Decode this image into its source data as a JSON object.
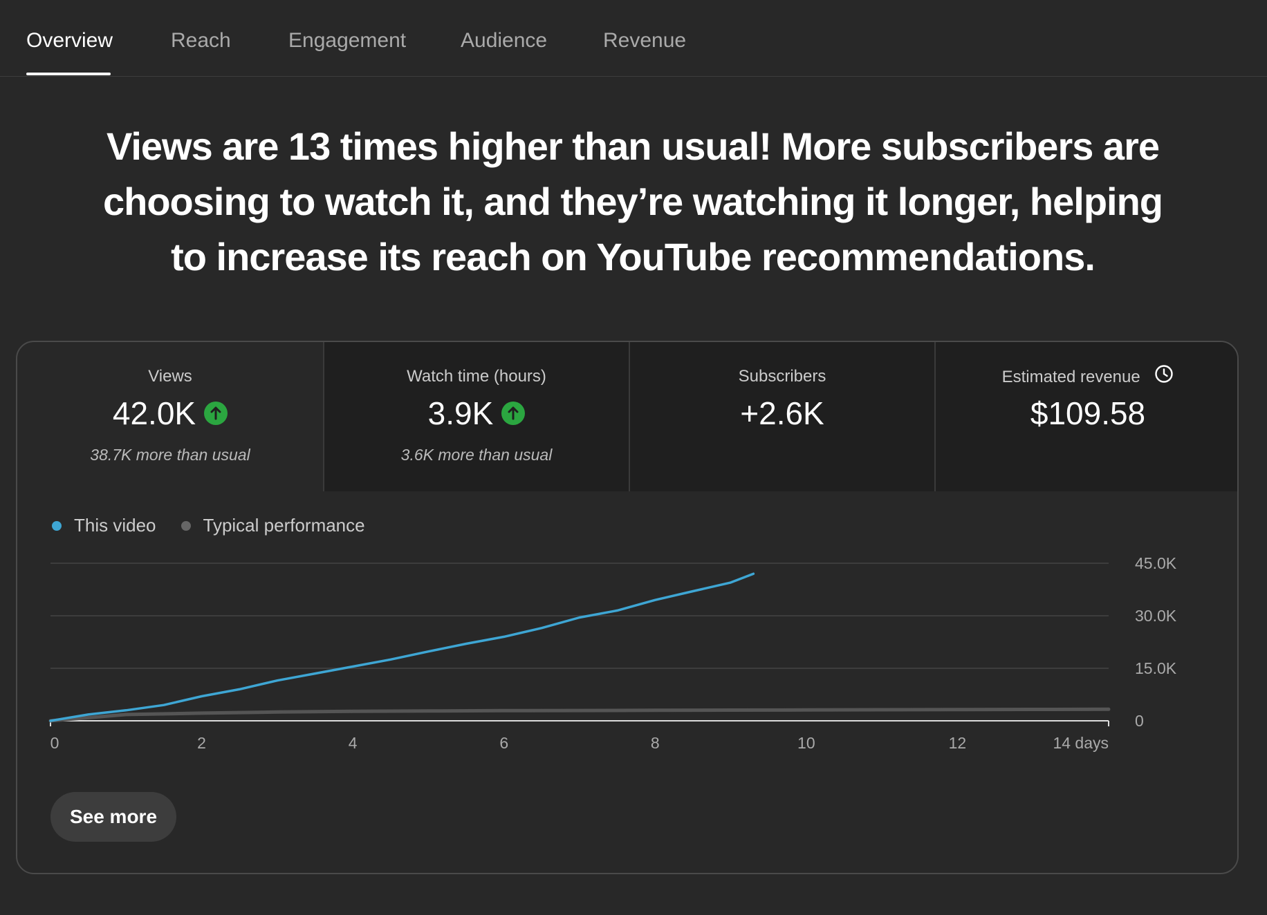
{
  "tabs": [
    {
      "label": "Overview",
      "active": true
    },
    {
      "label": "Reach",
      "active": false
    },
    {
      "label": "Engagement",
      "active": false
    },
    {
      "label": "Audience",
      "active": false
    },
    {
      "label": "Revenue",
      "active": false
    }
  ],
  "headline": "Views are 13 times higher than usual! More subscribers are choosing to watch it, and they’re watching it longer, helping to increase its reach on YouTube recommendations.",
  "metrics": [
    {
      "label": "Views",
      "value": "42.0K",
      "trend": "up",
      "sub": "38.7K more than usual"
    },
    {
      "label": "Watch time (hours)",
      "value": "3.9K",
      "trend": "up",
      "sub": "3.6K more than usual"
    },
    {
      "label": "Subscribers",
      "value": "+2.6K"
    },
    {
      "label": "Estimated revenue",
      "value": "$109.58",
      "icon": "clock-icon"
    }
  ],
  "colors": {
    "this_video": "#3ea6d4",
    "typical": "#666666",
    "trend_up": "#2ba640"
  },
  "chart_data": {
    "type": "line",
    "legend": [
      "This video",
      "Typical performance"
    ],
    "x_tick_labels": [
      "0",
      "2",
      "4",
      "6",
      "8",
      "10",
      "12",
      "14 days"
    ],
    "x_ticks": [
      0,
      2,
      4,
      6,
      8,
      10,
      12,
      14
    ],
    "y_tick_labels": [
      "45.0K",
      "30.0K",
      "15.0K",
      "0"
    ],
    "y_ticks": [
      45000,
      30000,
      15000,
      0
    ],
    "xlim": [
      0,
      14
    ],
    "ylim": [
      0,
      45000
    ],
    "grid": true,
    "series": [
      {
        "name": "This video",
        "color": "#3ea6d4",
        "x": [
          0,
          0.5,
          1,
          1.5,
          2,
          2.5,
          3,
          3.5,
          4,
          4.5,
          5,
          5.5,
          6,
          6.5,
          7,
          7.5,
          8,
          8.5,
          9,
          9.3
        ],
        "y": [
          0,
          1800,
          3000,
          4500,
          7000,
          9000,
          11500,
          13500,
          15500,
          17500,
          19800,
          22000,
          24000,
          26500,
          29500,
          31500,
          34500,
          37000,
          39500,
          42000
        ]
      },
      {
        "name": "Typical performance",
        "color": "#555555",
        "x": [
          0,
          1,
          2,
          3,
          4,
          5,
          6,
          7,
          8,
          9,
          10,
          11,
          12,
          13,
          14
        ],
        "y": [
          0,
          1800,
          2200,
          2500,
          2700,
          2800,
          2900,
          2950,
          3000,
          3050,
          3100,
          3150,
          3200,
          3250,
          3300
        ]
      }
    ]
  },
  "see_more_label": "See more"
}
